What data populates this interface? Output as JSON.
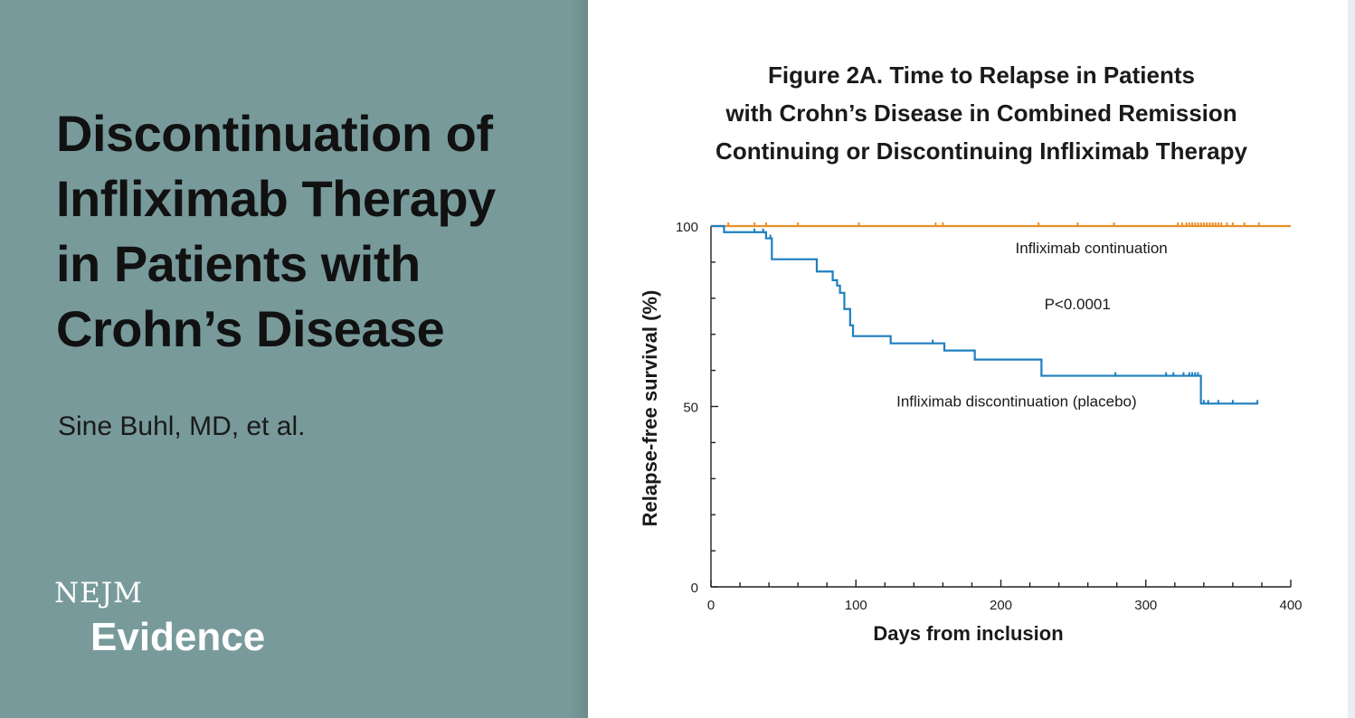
{
  "slide": {
    "title_lines": [
      "Discontinuation of",
      "Infliximab Therapy",
      "in Patients with",
      "Crohn’s Disease"
    ],
    "author": "Sine Buhl, MD, et al.",
    "brand": {
      "top": "NEJM",
      "bottom": "Evidence"
    },
    "colors": {
      "left_panel": "#789a9a",
      "continuation": "#e8902a",
      "discontinuation": "#1e7fc0"
    }
  },
  "chart_data": {
    "type": "line",
    "title": [
      "Figure 2A. Time to Relapse in Patients",
      "with Crohn’s Disease in Combined Remission",
      "Continuing or Discontinuing Infliximab Therapy"
    ],
    "xlabel": "Days from inclusion",
    "ylabel": "Relapse-free survival (%)",
    "xlim": [
      0,
      400
    ],
    "ylim": [
      0,
      100
    ],
    "xticks": [
      0,
      100,
      200,
      300,
      400
    ],
    "yticks": [
      0,
      50,
      100
    ],
    "x_minor_step": 20,
    "y_minor_step": 10,
    "pvalue": "P<0.0001",
    "series": [
      {
        "name": "Infliximab continuation",
        "color": "#e8902a",
        "steps": [
          [
            0,
            100
          ],
          [
            400,
            100
          ]
        ],
        "censor_x": [
          12,
          30,
          38,
          60,
          102,
          155,
          160,
          226,
          253,
          278,
          322,
          325,
          328,
          330,
          332,
          334,
          336,
          338,
          340,
          342,
          344,
          346,
          348,
          350,
          352,
          356,
          360,
          368,
          378
        ]
      },
      {
        "name": "Infliximab discontinuation (placebo)",
        "color": "#1e7fc0",
        "steps": [
          [
            0,
            100
          ],
          [
            9,
            98.3
          ],
          [
            35,
            98.3
          ],
          [
            38,
            96.6
          ],
          [
            42,
            90.8
          ],
          [
            71,
            90.8
          ],
          [
            73,
            87.4
          ],
          [
            82,
            87.4
          ],
          [
            84,
            85
          ],
          [
            87,
            83.5
          ],
          [
            89,
            81.5
          ],
          [
            92,
            77
          ],
          [
            96,
            72.5
          ],
          [
            98,
            69.5
          ],
          [
            122,
            69.5
          ],
          [
            124,
            67.5
          ],
          [
            157,
            67.5
          ],
          [
            161,
            65.5
          ],
          [
            180,
            65.5
          ],
          [
            182,
            63
          ],
          [
            226,
            63
          ],
          [
            228,
            58.5
          ],
          [
            335,
            58.5
          ],
          [
            338,
            50.8
          ],
          [
            377,
            50.8
          ]
        ],
        "censor_x": [
          30,
          36,
          41,
          153,
          279,
          314,
          319,
          326,
          330,
          332,
          334,
          336,
          340,
          343,
          350,
          360,
          377
        ]
      }
    ],
    "annotations": [
      {
        "text": "Infliximab continuation",
        "x": 210,
        "y": 94
      },
      {
        "text": "P<0.0001",
        "x": 230,
        "y": 78.5
      },
      {
        "text": "Infliximab discontinuation (placebo)",
        "x": 128,
        "y": 51.5
      }
    ]
  }
}
